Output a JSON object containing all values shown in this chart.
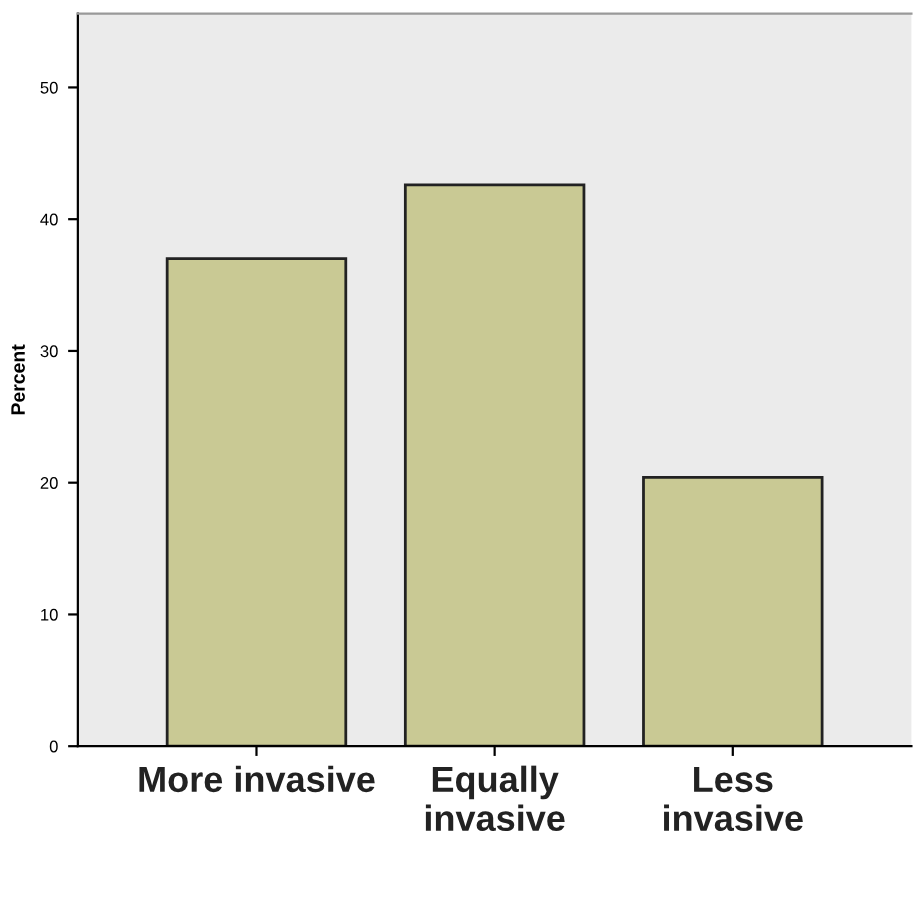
{
  "chart_data": {
    "type": "bar",
    "ylabel": "Percent",
    "categories": [
      "More invasive",
      "Equally\ninvasive",
      "Less\ninvasive"
    ],
    "values": [
      37.0,
      42.6,
      20.4
    ],
    "color": "#c9c994",
    "ylim": [
      0,
      55.6
    ],
    "yticks": [
      0,
      10,
      20,
      30,
      40,
      50
    ],
    "grid": false
  }
}
